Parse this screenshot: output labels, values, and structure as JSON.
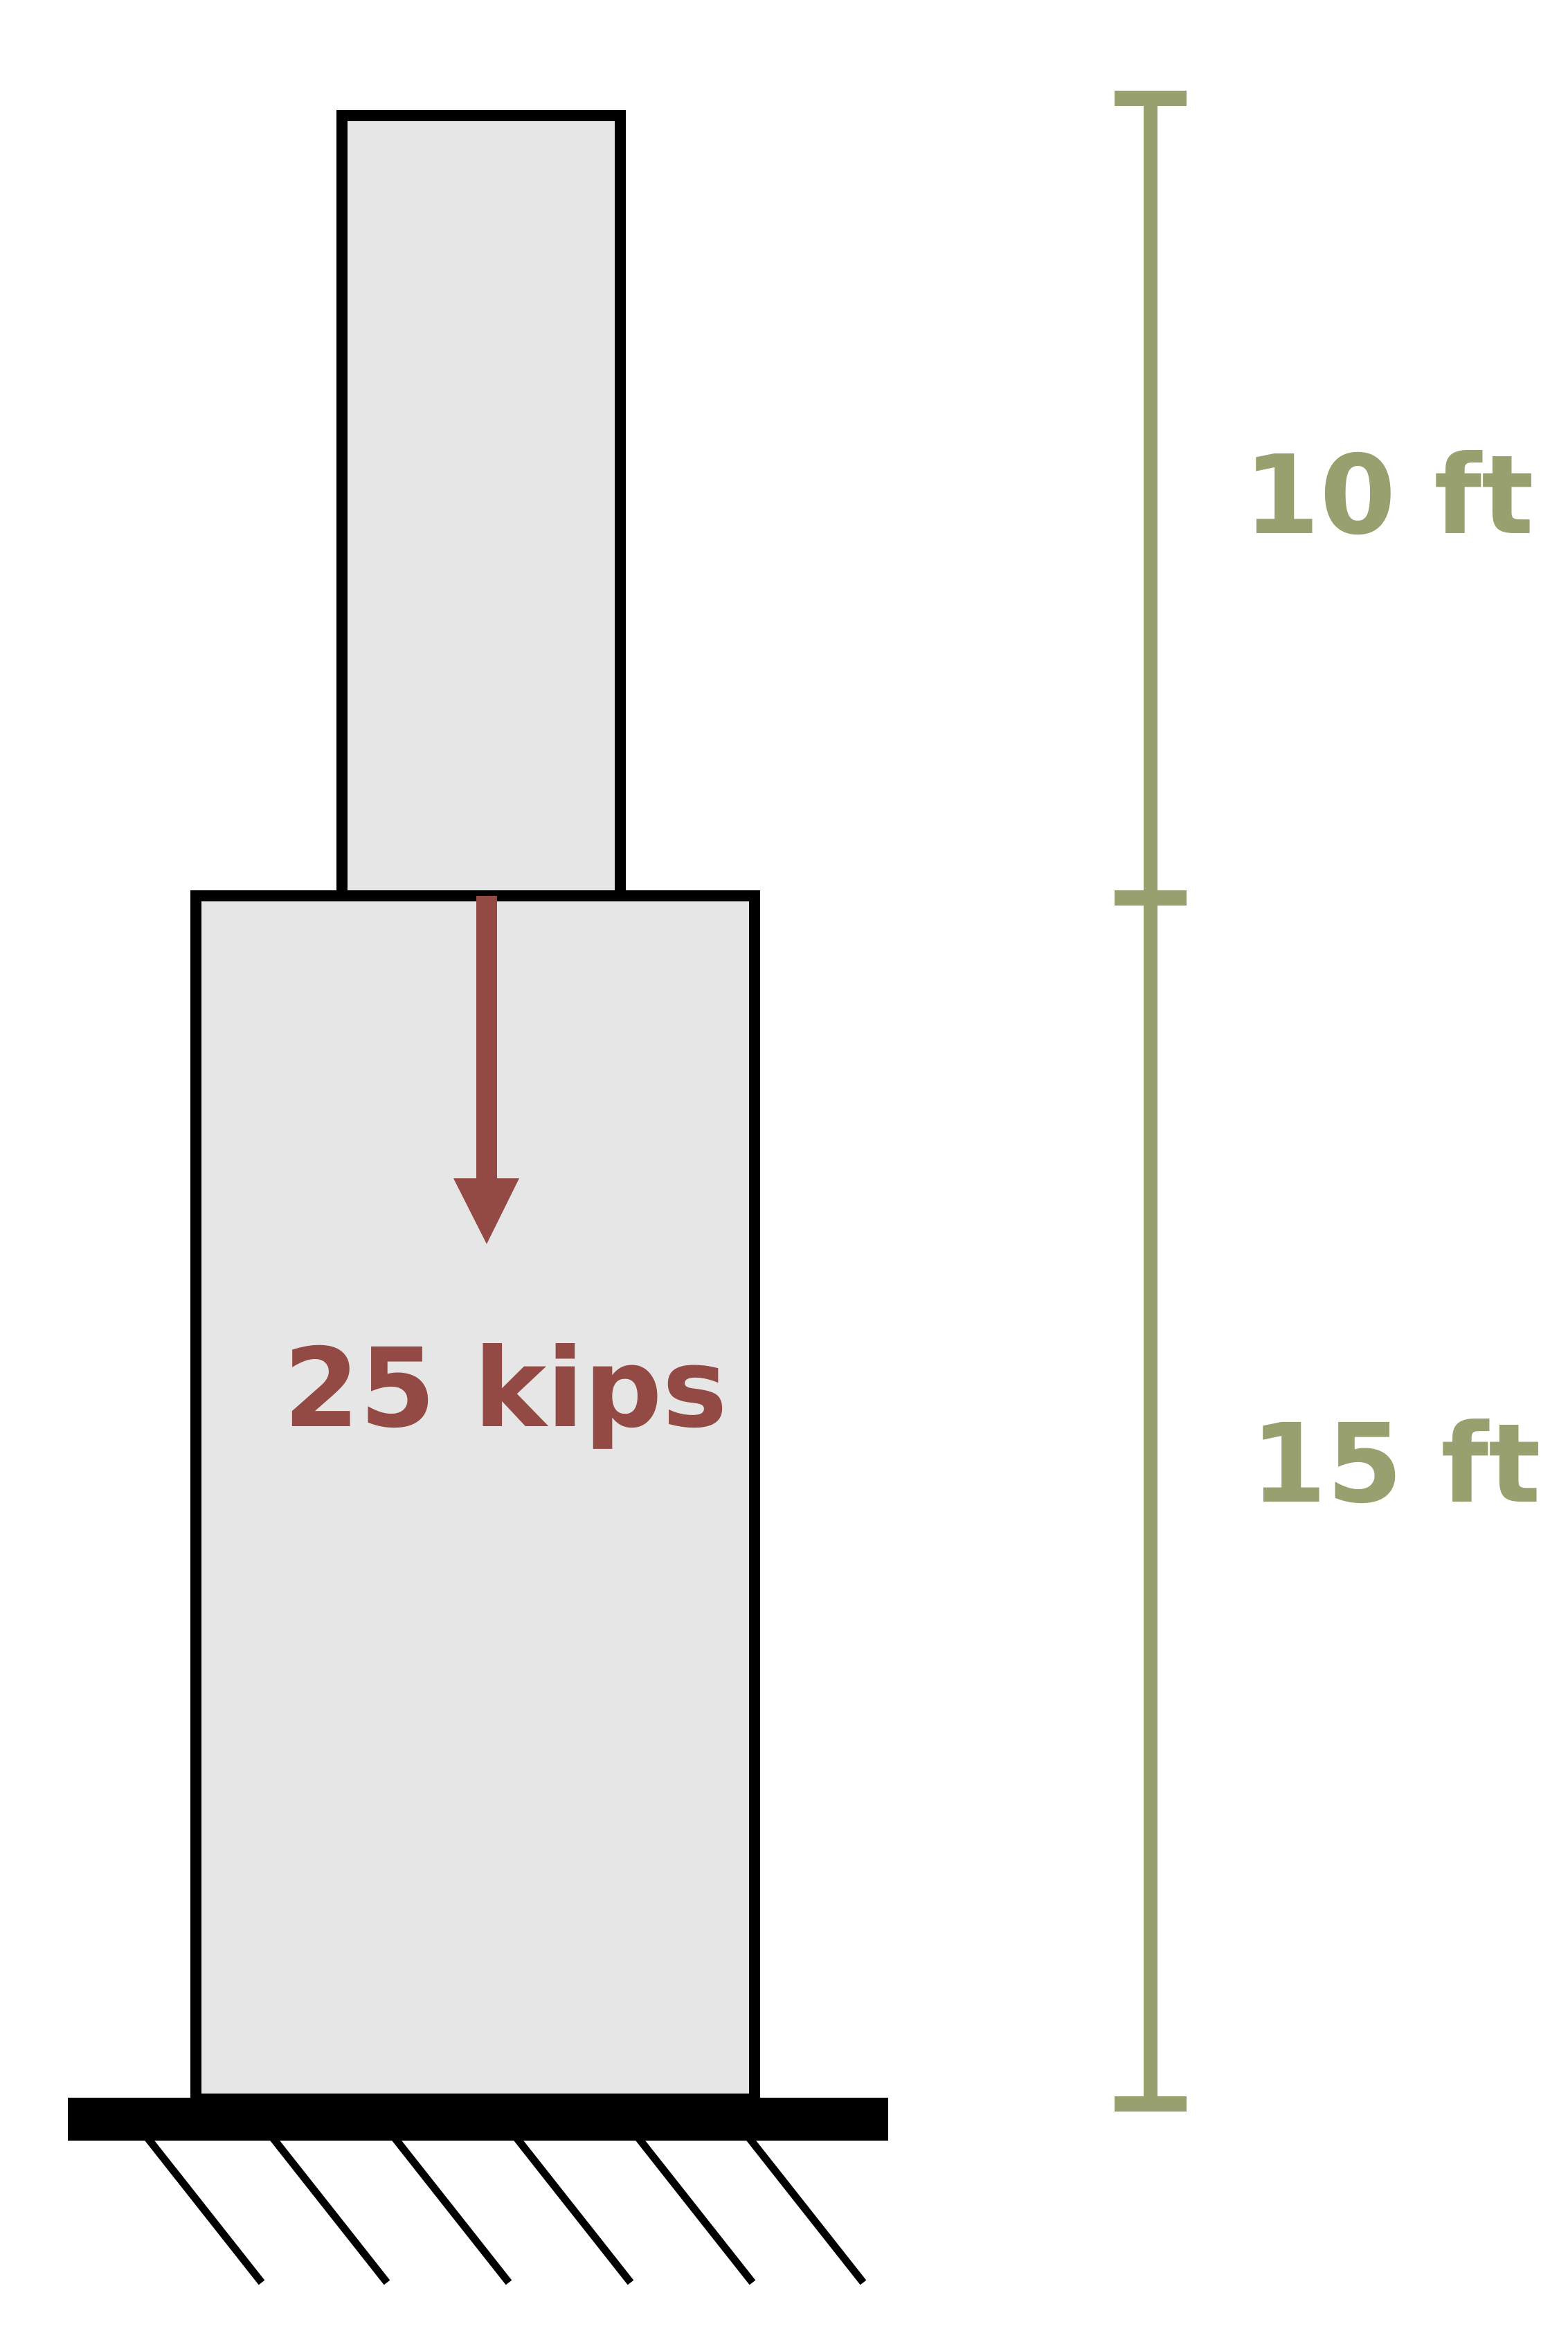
{
  "colors": {
    "member_fill": "#e6e6e6",
    "outline": "#000000",
    "load": "#944a44",
    "dimension": "#97a06e"
  },
  "load": {
    "label": "25 kips"
  },
  "dimensions": {
    "upper_segment": "10 ft",
    "lower_segment": "15 ft"
  },
  "support": {
    "type": "fixed",
    "hatch_count": 6
  }
}
